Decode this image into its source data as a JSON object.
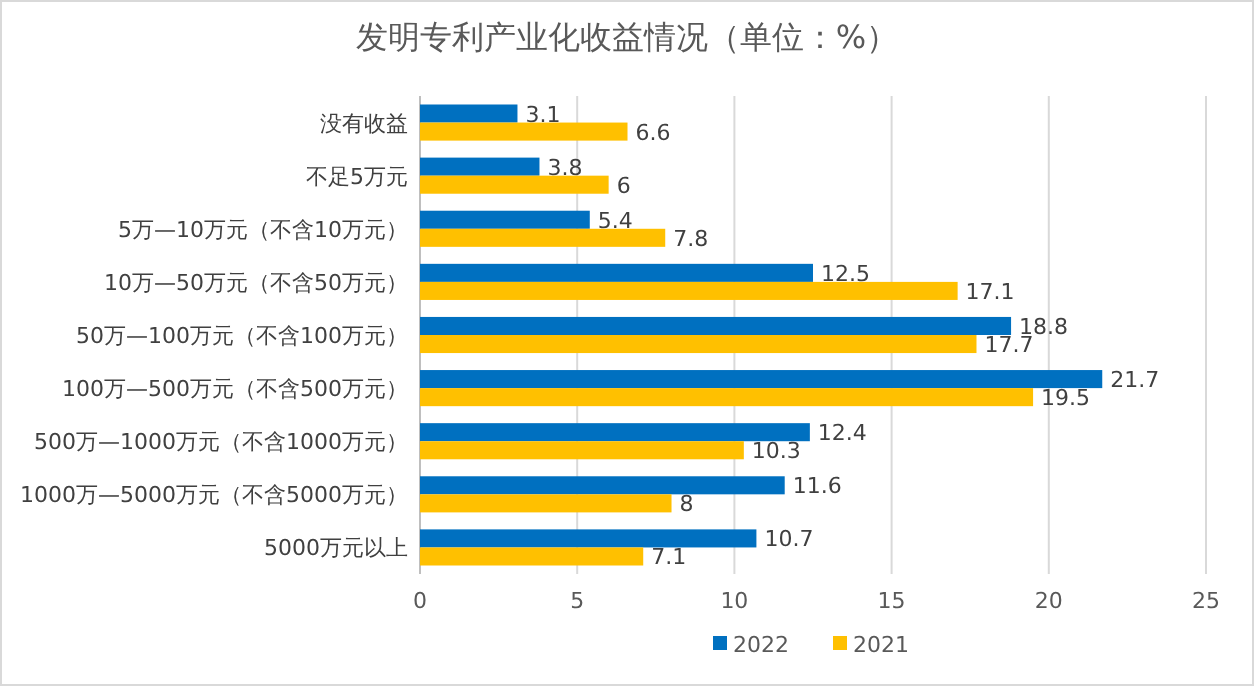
{
  "chart_data": {
    "type": "bar",
    "orientation": "horizontal",
    "title": "发明专利产业化收益情况（单位：%）",
    "categories": [
      "没有收益",
      "不足5万元",
      "5万—10万元（不含10万元）",
      "10万—50万元（不含50万元）",
      "50万—100万元（不含100万元）",
      "100万—500万元（不含500万元）",
      "500万—1000万元（不含1000万元）",
      "1000万—5000万元（不含5000万元）",
      "5000万元以上"
    ],
    "series": [
      {
        "name": "2022",
        "color": "#0070c0",
        "values": [
          3.1,
          3.8,
          5.4,
          12.5,
          18.8,
          21.7,
          12.4,
          11.6,
          10.7
        ]
      },
      {
        "name": "2021",
        "color": "#ffc000",
        "values": [
          6.6,
          6,
          7.8,
          17.1,
          17.7,
          19.5,
          10.3,
          8,
          7.1
        ]
      }
    ],
    "xlim": [
      0,
      25
    ],
    "xticks": [
      0,
      5,
      10,
      15,
      20,
      25
    ],
    "grid": "x",
    "legend": "bottom",
    "data_labels": true
  }
}
